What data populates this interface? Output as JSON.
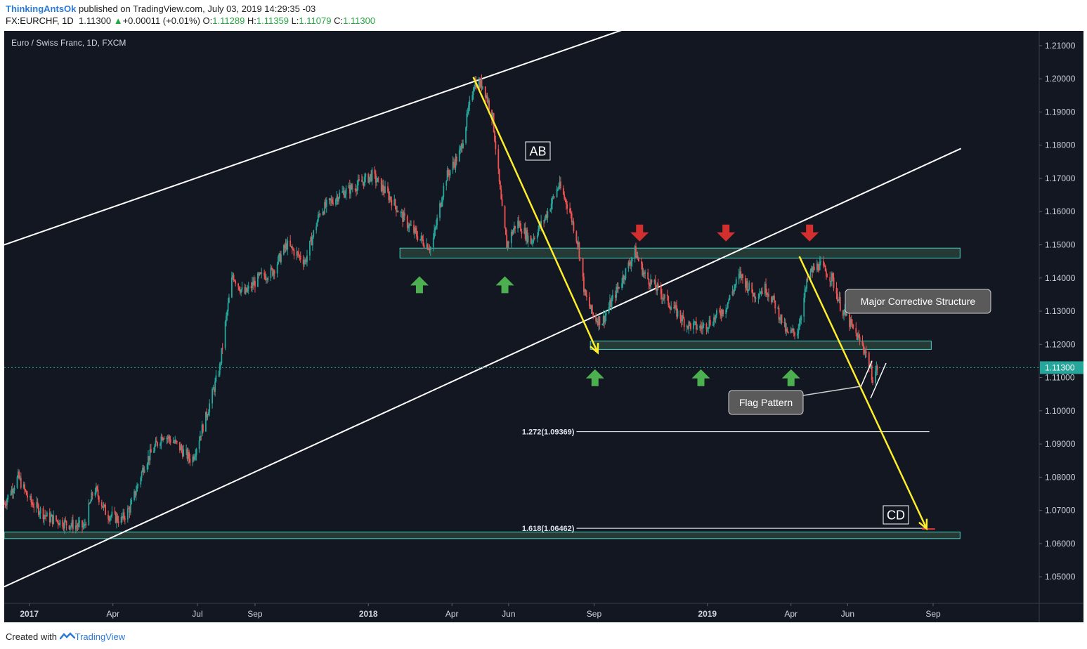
{
  "header": {
    "author": "ThinkingAntsOk",
    "published": "published on TradingView.com, July 03, 2019 14:29:35 -03",
    "symbol": "FX:EURCHF, 1D",
    "last": "1.11300",
    "change": "+0.00011 (+0.01%)",
    "change_arrow": "▲",
    "o_label": "O:",
    "o_value": "1.11289",
    "h_label": "H:",
    "h_value": "1.11359",
    "l_label": "L:",
    "l_value": "1.11079",
    "c_label": "C:",
    "c_value": "1.11300"
  },
  "footer": {
    "created_prefix": "Created with",
    "brand": "TradingView"
  },
  "colors": {
    "background": "#131722",
    "up_candle": "#26a69a",
    "down_candle": "#ef5350",
    "zone_border": "#4dd0c4",
    "arrow_line": "#ffee2a",
    "green_marker": "#4caf50",
    "red_marker": "#d32f2f",
    "channel": "#ffffff"
  },
  "chart_data": {
    "type": "candlestick",
    "title": "Euro / Swiss Franc, 1D, FXCM",
    "ylim": [
      1.042,
      1.214
    ],
    "y_ticks": [
      "1.21000",
      "1.20000",
      "1.19000",
      "1.18000",
      "1.17000",
      "1.16000",
      "1.15000",
      "1.14000",
      "1.13000",
      "1.12000",
      "1.11000",
      "1.10000",
      "1.09000",
      "1.08000",
      "1.07000",
      "1.06000",
      "1.05000"
    ],
    "x_ticks": [
      {
        "label": "2017",
        "date": "2017-01-01"
      },
      {
        "label": "Apr",
        "date": "2017-04-01"
      },
      {
        "label": "Jul",
        "date": "2017-07-01"
      },
      {
        "label": "Sep",
        "date": "2017-09-01"
      },
      {
        "label": "2018",
        "date": "2018-01-01"
      },
      {
        "label": "Apr",
        "date": "2018-04-01"
      },
      {
        "label": "Jun",
        "date": "2018-06-01"
      },
      {
        "label": "Sep",
        "date": "2018-09-01"
      },
      {
        "label": "2019",
        "date": "2019-01-01"
      },
      {
        "label": "Apr",
        "date": "2019-04-01"
      },
      {
        "label": "Jun",
        "date": "2019-06-01"
      },
      {
        "label": "Sep",
        "date": "2019-09-01"
      }
    ],
    "last_price": "1.11300",
    "price_path": [
      [
        "2016-12-05",
        1.072
      ],
      [
        "2016-12-20",
        1.08
      ],
      [
        "2017-01-01",
        1.073
      ],
      [
        "2017-01-20",
        1.068
      ],
      [
        "2017-02-10",
        1.066
      ],
      [
        "2017-03-01",
        1.065
      ],
      [
        "2017-03-12",
        1.077
      ],
      [
        "2017-03-25",
        1.069
      ],
      [
        "2017-04-10",
        1.067
      ],
      [
        "2017-04-20",
        1.071
      ],
      [
        "2017-05-05",
        1.084
      ],
      [
        "2017-05-25",
        1.093
      ],
      [
        "2017-06-08",
        1.09
      ],
      [
        "2017-06-25",
        1.085
      ],
      [
        "2017-07-10",
        1.098
      ],
      [
        "2017-07-25",
        1.113
      ],
      [
        "2017-07-31",
        1.126
      ],
      [
        "2017-08-08",
        1.141
      ],
      [
        "2017-08-20",
        1.135
      ],
      [
        "2017-09-05",
        1.14
      ],
      [
        "2017-09-20",
        1.142
      ],
      [
        "2017-10-05",
        1.15
      ],
      [
        "2017-10-25",
        1.145
      ],
      [
        "2017-11-10",
        1.16
      ],
      [
        "2017-11-30",
        1.165
      ],
      [
        "2017-12-20",
        1.168
      ],
      [
        "2018-01-05",
        1.171
      ],
      [
        "2018-01-25",
        1.164
      ],
      [
        "2018-02-10",
        1.157
      ],
      [
        "2018-02-25",
        1.152
      ],
      [
        "2018-03-10",
        1.149
      ],
      [
        "2018-03-25",
        1.17
      ],
      [
        "2018-04-10",
        1.178
      ],
      [
        "2018-04-20",
        1.192
      ],
      [
        "2018-04-25",
        1.199
      ],
      [
        "2018-05-05",
        1.198
      ],
      [
        "2018-05-15",
        1.188
      ],
      [
        "2018-05-25",
        1.16
      ],
      [
        "2018-05-30",
        1.15
      ],
      [
        "2018-06-10",
        1.157
      ],
      [
        "2018-06-25",
        1.151
      ],
      [
        "2018-07-10",
        1.158
      ],
      [
        "2018-07-25",
        1.168
      ],
      [
        "2018-08-05",
        1.161
      ],
      [
        "2018-08-15",
        1.15
      ],
      [
        "2018-08-22",
        1.135
      ],
      [
        "2018-09-01",
        1.128
      ],
      [
        "2018-09-10",
        1.127
      ],
      [
        "2018-09-20",
        1.133
      ],
      [
        "2018-10-05",
        1.142
      ],
      [
        "2018-10-15",
        1.148
      ],
      [
        "2018-10-25",
        1.141
      ],
      [
        "2018-11-10",
        1.136
      ],
      [
        "2018-11-25",
        1.131
      ],
      [
        "2018-12-10",
        1.126
      ],
      [
        "2018-12-25",
        1.125
      ],
      [
        "2019-01-05",
        1.127
      ],
      [
        "2019-01-20",
        1.131
      ],
      [
        "2019-02-05",
        1.141
      ],
      [
        "2019-02-20",
        1.135
      ],
      [
        "2019-03-05",
        1.137
      ],
      [
        "2019-03-15",
        1.132
      ],
      [
        "2019-03-28",
        1.123
      ],
      [
        "2019-04-08",
        1.124
      ],
      [
        "2019-04-20",
        1.141
      ],
      [
        "2019-05-01",
        1.144
      ],
      [
        "2019-05-15",
        1.14
      ],
      [
        "2019-05-25",
        1.131
      ],
      [
        "2019-06-08",
        1.124
      ],
      [
        "2019-06-20",
        1.118
      ],
      [
        "2019-06-28",
        1.11
      ],
      [
        "2019-07-03",
        1.113
      ]
    ],
    "channel_lines": [
      {
        "from": [
          "2016-12-05",
          1.15
        ],
        "to": [
          "2018-10-25",
          1.217
        ]
      },
      {
        "from": [
          "2016-12-05",
          1.047
        ],
        "to": [
          "2019-10-01",
          1.179
        ]
      }
    ],
    "zones": [
      {
        "from": "2018-02-04",
        "to": "2019-09-30",
        "low": 1.146,
        "high": 1.149
      },
      {
        "from": "2018-08-28",
        "to": "2019-08-30",
        "low": 1.1185,
        "high": 1.121
      },
      {
        "from": "2016-12-05",
        "to": "2019-09-30",
        "low": 1.0615,
        "high": 1.0635
      }
    ],
    "fib_levels": [
      {
        "label": "1.272(1.09369)",
        "value": 1.09369,
        "from": "2018-09-01",
        "to": "2019-08-28"
      },
      {
        "label": "1.618(1.06462)",
        "value": 1.06462,
        "from": "2018-09-01",
        "to": "2019-08-26"
      }
    ],
    "arrows": [
      {
        "from": [
          "2018-04-24",
          1.2005
        ],
        "to": [
          "2018-09-05",
          1.1175
        ]
      },
      {
        "from": [
          "2019-04-10",
          1.1465
        ],
        "to": [
          "2019-08-25",
          1.0645
        ]
      }
    ],
    "up_markers": [
      [
        "2018-02-25",
        1.1405
      ],
      [
        "2018-05-28",
        1.1405
      ],
      [
        "2018-09-02",
        1.1125
      ],
      [
        "2018-12-25",
        1.1125
      ],
      [
        "2019-04-01",
        1.1125
      ]
    ],
    "down_markers": [
      [
        "2018-10-20",
        1.151
      ],
      [
        "2019-01-21",
        1.151
      ],
      [
        "2019-04-21",
        1.151
      ]
    ],
    "labels": {
      "ab": "AB",
      "cd": "CD",
      "major": "Major Corrective Structure",
      "flag": "Flag Pattern"
    }
  }
}
